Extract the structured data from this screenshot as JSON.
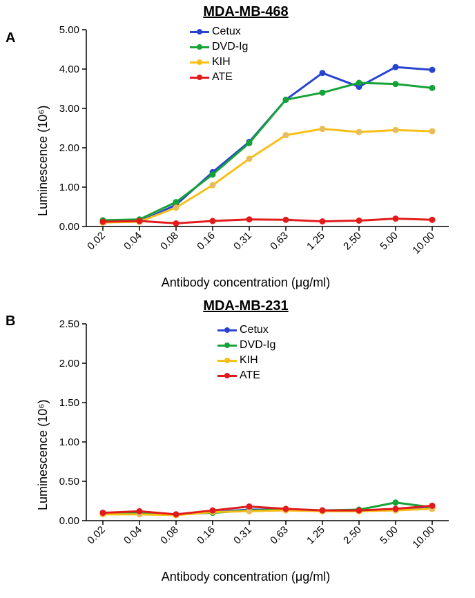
{
  "panelA": {
    "label": "A",
    "title": "MDA-MB-468",
    "chart": {
      "type": "line",
      "x_categories": [
        "0.02",
        "0.04",
        "0.08",
        "0.16",
        "0.31",
        "0.63",
        "1.25",
        "2.50",
        "5.00",
        "10.00"
      ],
      "x_label": "Antibody concentration (μg/ml)",
      "y_label": "Luminescence (10⁶)",
      "ylim": [
        0,
        5
      ],
      "ytick_step": 1,
      "ytick_labels": [
        "0.00",
        "1.00",
        "2.00",
        "3.00",
        "4.00",
        "5.00"
      ],
      "x_tick_rotation": 45,
      "tick_fontsize": 15,
      "label_fontsize": 18,
      "title_fontsize": 20,
      "background_color": "#ffffff",
      "axis_color": "#000000",
      "grid": false,
      "line_width": 3,
      "marker_size": 8,
      "series": [
        {
          "name": "Cetux",
          "color": "#2943d1",
          "marker_fill": "#2943d1",
          "values": [
            0.12,
            0.12,
            0.55,
            1.38,
            2.15,
            3.22,
            3.9,
            3.55,
            4.05,
            3.98
          ]
        },
        {
          "name": "DVD-Ig",
          "color": "#17a238",
          "marker_fill": "#17a238",
          "values": [
            0.16,
            0.18,
            0.62,
            1.32,
            2.12,
            3.22,
            3.4,
            3.65,
            3.62,
            3.52
          ]
        },
        {
          "name": "KIH",
          "color": "#f7bf16",
          "marker_fill": "#e3b977",
          "values": [
            0.1,
            0.12,
            0.48,
            1.05,
            1.72,
            2.32,
            2.48,
            2.4,
            2.45,
            2.42
          ]
        },
        {
          "name": "ATE",
          "color": "#e11b1b",
          "marker_fill": "#e11b1b",
          "values": [
            0.12,
            0.14,
            0.08,
            0.14,
            0.18,
            0.17,
            0.13,
            0.15,
            0.2,
            0.17
          ]
        }
      ]
    }
  },
  "panelB": {
    "label": "B",
    "title": "MDA-MB-231",
    "chart": {
      "type": "line",
      "x_categories": [
        "0.02",
        "0.04",
        "0.08",
        "0.16",
        "0.31",
        "0.63",
        "1.25",
        "2.50",
        "5.00",
        "10.00"
      ],
      "x_label": "Antibody concentration (μg/ml)",
      "y_label": "Luminescence (10⁶)",
      "ylim": [
        0,
        2.5
      ],
      "ytick_step": 0.5,
      "ytick_labels": [
        "0.00",
        "0.50",
        "1.00",
        "1.50",
        "2.00",
        "2.50"
      ],
      "x_tick_rotation": 45,
      "tick_fontsize": 15,
      "label_fontsize": 18,
      "title_fontsize": 20,
      "background_color": "#ffffff",
      "axis_color": "#000000",
      "grid": false,
      "line_width": 3,
      "marker_size": 8,
      "series": [
        {
          "name": "Cetux",
          "color": "#2943d1",
          "marker_fill": "#2943d1",
          "values": [
            0.1,
            0.1,
            0.08,
            0.11,
            0.14,
            0.14,
            0.13,
            0.13,
            0.14,
            0.16
          ]
        },
        {
          "name": "DVD-Ig",
          "color": "#17a238",
          "marker_fill": "#17a238",
          "values": [
            0.09,
            0.09,
            0.08,
            0.1,
            0.13,
            0.14,
            0.13,
            0.14,
            0.23,
            0.17
          ]
        },
        {
          "name": "KIH",
          "color": "#f7bf16",
          "marker_fill": "#e3b977",
          "values": [
            0.08,
            0.08,
            0.07,
            0.11,
            0.12,
            0.13,
            0.12,
            0.12,
            0.13,
            0.15
          ]
        },
        {
          "name": "ATE",
          "color": "#e11b1b",
          "marker_fill": "#e11b1b",
          "values": [
            0.1,
            0.12,
            0.08,
            0.13,
            0.18,
            0.15,
            0.13,
            0.13,
            0.15,
            0.19
          ]
        }
      ]
    }
  },
  "legend_labels": {
    "s0": "Cetux",
    "s1": "DVD-Ig",
    "s2": "KIH",
    "s3": "ATE"
  }
}
